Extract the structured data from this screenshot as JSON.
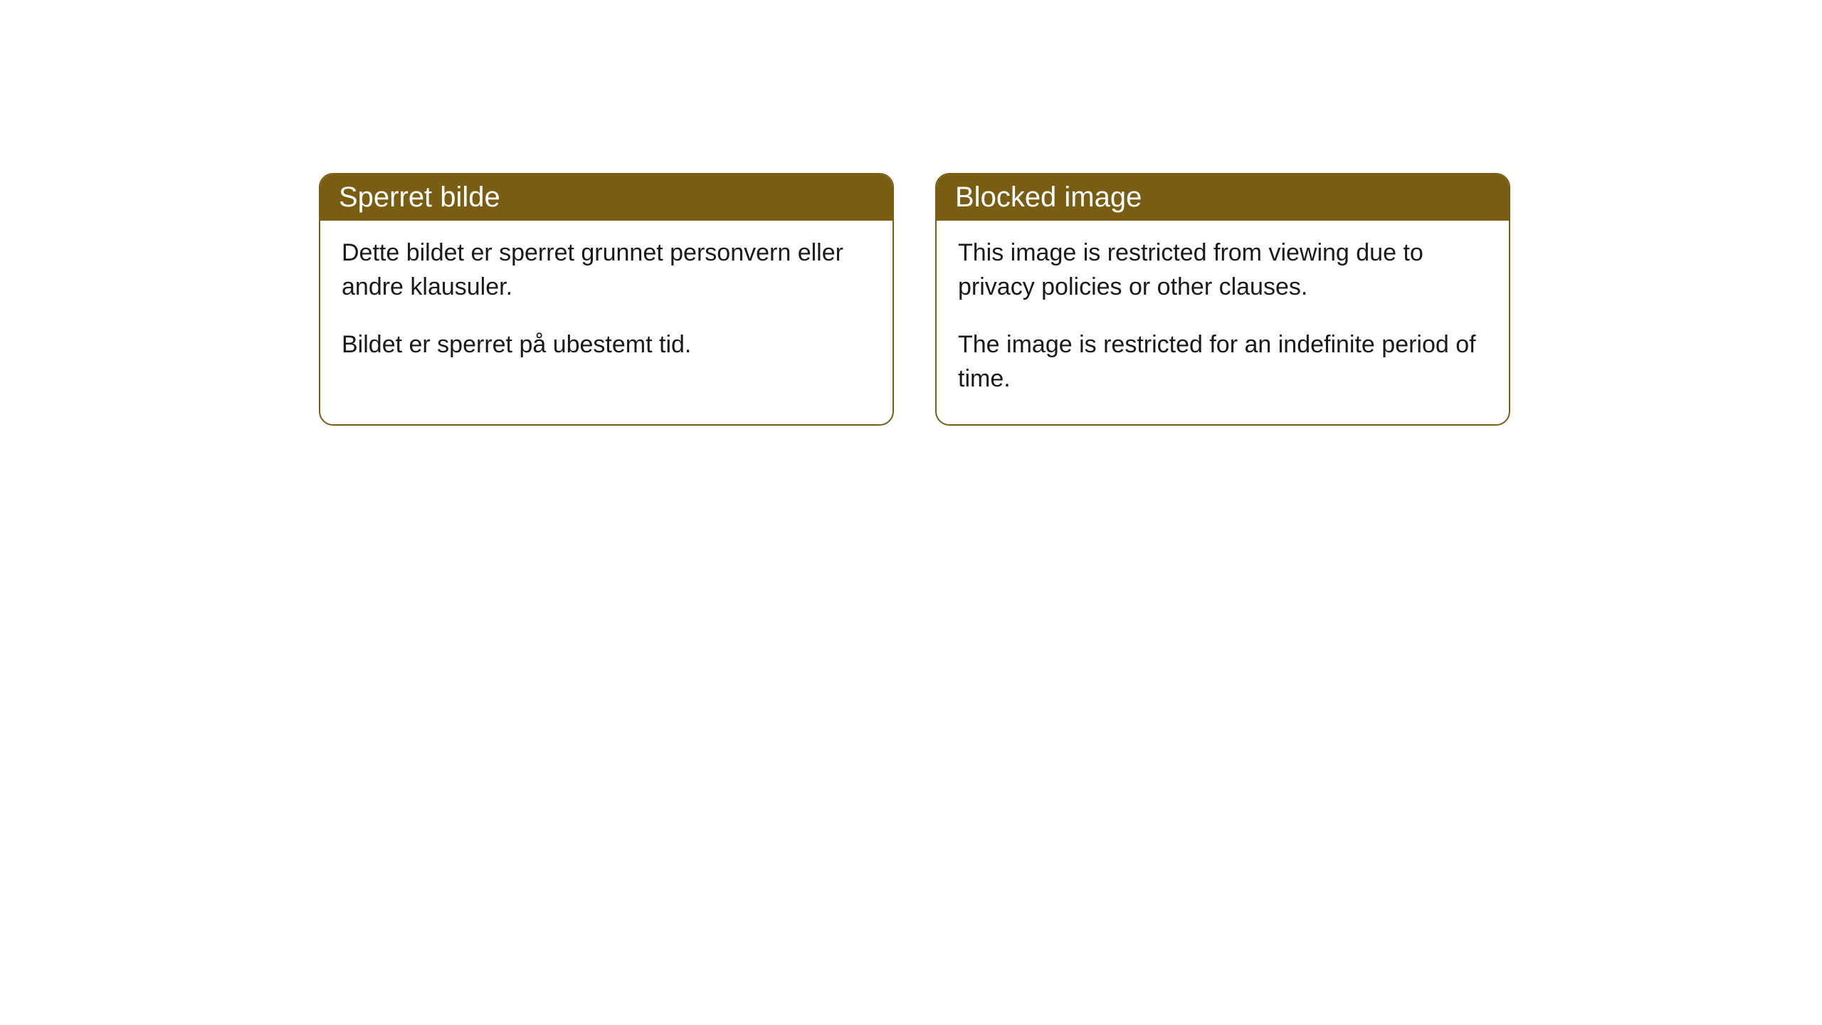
{
  "cards": [
    {
      "title": "Sperret bilde",
      "paragraph1": "Dette bildet er sperret grunnet personvern eller andre klausuler.",
      "paragraph2": "Bildet er sperret på ubestemt tid."
    },
    {
      "title": "Blocked image",
      "paragraph1": "This image is restricted from viewing due to privacy policies or other clauses.",
      "paragraph2": "The image is restricted for an indefinite period of time."
    }
  ],
  "colors": {
    "header_bg": "#785d13",
    "header_text": "#ffffff",
    "border": "#785d13",
    "body_text": "#1a1a1a",
    "background": "#ffffff"
  }
}
